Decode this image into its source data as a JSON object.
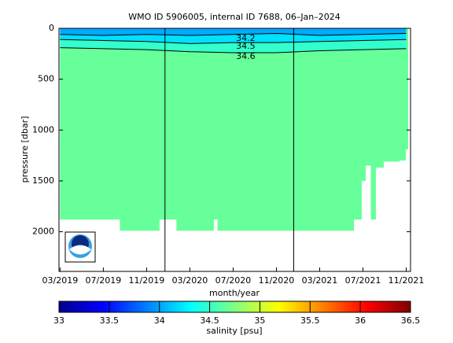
{
  "chart_data": {
    "type": "section",
    "title": "WMO ID 5906005, internal ID 7688, 06–Jan–2024",
    "xlabel": "month/year",
    "ylabel": "pressure [dbar]",
    "colorbar_label": "salinity [psu]",
    "xlim": [
      -0.1,
      32.4
    ],
    "xticks": [
      {
        "value": 0,
        "label": "03/2019"
      },
      {
        "value": 4,
        "label": "07/2019"
      },
      {
        "value": 8,
        "label": "11/2019"
      },
      {
        "value": 12,
        "label": "03/2020"
      },
      {
        "value": 16,
        "label": "07/2020"
      },
      {
        "value": 20,
        "label": "11/2020"
      },
      {
        "value": 24,
        "label": "03/2021"
      },
      {
        "value": 28,
        "label": "07/2021"
      },
      {
        "value": 32,
        "label": "11/2021"
      }
    ],
    "ylim": [
      0,
      2390
    ],
    "yticks": [
      0,
      500,
      1000,
      1500,
      2000
    ],
    "y_inverted": true,
    "clim": [
      33,
      36.5
    ],
    "cticks": [
      33,
      33.5,
      34,
      34.5,
      35,
      35.5,
      36,
      36.5
    ],
    "x_edges": [
      0,
      5.53,
      9.16,
      10.76,
      14.18,
      14.55,
      27.13,
      27.85,
      28.22,
      28.73,
      29.16,
      29.89,
      31.35,
      31.93,
      32.15
    ],
    "bottom_pressure": [
      1880,
      1990,
      1880,
      1990,
      1880,
      1990,
      1880,
      1500,
      1350,
      1880,
      1370,
      1310,
      1300,
      1190
    ],
    "fill_color": "#66ff99",
    "contour_x": [
      0,
      4,
      8,
      12,
      16,
      20,
      24,
      28,
      32
    ],
    "contours": [
      {
        "level": 34.6,
        "color": "#000000",
        "fill_above": "#33ffcc",
        "pressure": [
          190,
          200,
          210,
          230,
          240,
          240,
          220,
          210,
          200
        ]
      },
      {
        "level": 34.5,
        "color": "#000000",
        "fill_above": "#00e0ff",
        "pressure": [
          110,
          120,
          130,
          150,
          140,
          140,
          130,
          120,
          110
        ]
      },
      {
        "level": 34.2,
        "color": "#000000",
        "fill_above": "#00aaff",
        "pressure": [
          60,
          70,
          60,
          70,
          60,
          50,
          70,
          60,
          50
        ]
      }
    ],
    "vlines": [
      9.7,
      21.6
    ]
  }
}
